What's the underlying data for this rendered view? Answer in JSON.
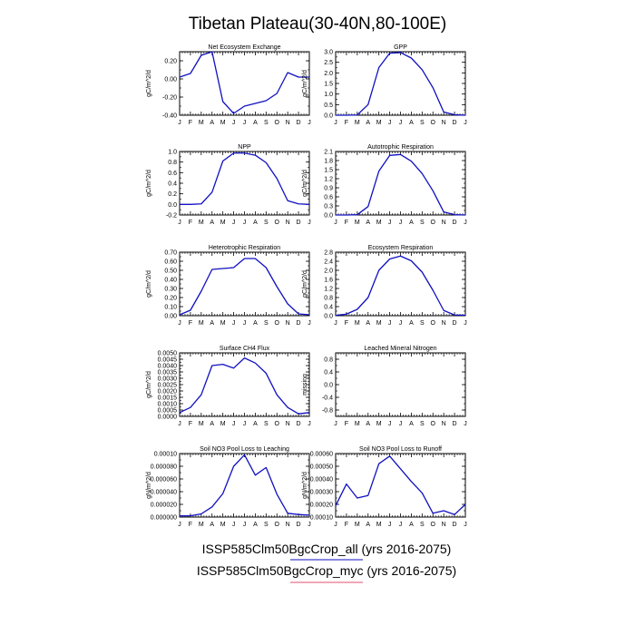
{
  "figure": {
    "title": "Tibetan Plateau(30-40N,80-100E)",
    "legend": [
      {
        "label": "ISSP585Clm50BgcCrop_all (yrs 2016-2075)",
        "color": "#1010c0"
      },
      {
        "label": "ISSP585Clm50BgcCrop_myc (yrs 2016-2075)",
        "color": "#e05070"
      }
    ]
  },
  "chart_data": [
    {
      "type": "line",
      "title": "Net Ecosystem Exchange",
      "ylabel": "gC/m^2/d",
      "categories": [
        "J",
        "F",
        "M",
        "A",
        "M",
        "J",
        "J",
        "A",
        "S",
        "O",
        "N",
        "D",
        "J"
      ],
      "ylim": [
        -0.4,
        0.3
      ],
      "yticks": [
        -0.4,
        -0.2,
        0.0,
        0.2
      ],
      "ytick_labels": [
        "-0.40",
        "-0.20",
        "0.00",
        "0.20"
      ],
      "series": [
        {
          "values": [
            0.02,
            0.06,
            0.26,
            0.3,
            -0.25,
            -0.38,
            -0.3,
            -0.27,
            -0.24,
            -0.16,
            0.07,
            0.02,
            0.02
          ]
        }
      ]
    },
    {
      "type": "line",
      "title": "GPP",
      "ylabel": "gC/m^2/d",
      "categories": [
        "J",
        "F",
        "M",
        "A",
        "M",
        "J",
        "J",
        "A",
        "S",
        "O",
        "N",
        "D",
        "J"
      ],
      "ylim": [
        0.0,
        3.0
      ],
      "yticks": [
        0.0,
        0.5,
        1.0,
        1.5,
        2.0,
        2.5,
        3.0
      ],
      "ytick_labels": [
        "0.0",
        "0.5",
        "1.0",
        "1.5",
        "2.0",
        "2.5",
        "3.0"
      ],
      "series": [
        {
          "values": [
            0.0,
            0.0,
            0.01,
            0.5,
            2.25,
            2.93,
            2.96,
            2.7,
            2.15,
            1.3,
            0.15,
            0.02,
            0.0
          ]
        }
      ]
    },
    {
      "type": "line",
      "title": "NPP",
      "ylabel": "gC/m^2/d",
      "categories": [
        "J",
        "F",
        "M",
        "A",
        "M",
        "J",
        "J",
        "A",
        "S",
        "O",
        "N",
        "D",
        "J"
      ],
      "ylim": [
        -0.2,
        1.0
      ],
      "yticks": [
        -0.2,
        0.0,
        0.2,
        0.4,
        0.6,
        0.8,
        1.0
      ],
      "ytick_labels": [
        "-0.2",
        "0.0",
        "0.2",
        "0.4",
        "0.6",
        "0.8",
        "1.0"
      ],
      "series": [
        {
          "values": [
            0.0,
            0.0,
            0.01,
            0.23,
            0.82,
            0.97,
            0.97,
            0.93,
            0.79,
            0.49,
            0.07,
            0.01,
            0.0
          ]
        }
      ]
    },
    {
      "type": "line",
      "title": "Autotrophic Respiration",
      "ylabel": "gC/m^2/d",
      "categories": [
        "J",
        "F",
        "M",
        "A",
        "M",
        "J",
        "J",
        "A",
        "S",
        "O",
        "N",
        "D",
        "J"
      ],
      "ylim": [
        0.0,
        2.1
      ],
      "yticks": [
        0.0,
        0.3,
        0.6,
        0.9,
        1.2,
        1.5,
        1.8,
        2.1
      ],
      "ytick_labels": [
        "0.0",
        "0.3",
        "0.6",
        "0.9",
        "1.2",
        "1.5",
        "1.8",
        "2.1"
      ],
      "series": [
        {
          "values": [
            0.0,
            0.0,
            0.01,
            0.28,
            1.45,
            1.97,
            2.0,
            1.78,
            1.37,
            0.8,
            0.1,
            0.01,
            0.0
          ]
        }
      ]
    },
    {
      "type": "line",
      "title": "Heterotrophic Respiration",
      "ylabel": "gC/m^2/d",
      "categories": [
        "J",
        "F",
        "M",
        "A",
        "M",
        "J",
        "J",
        "A",
        "S",
        "O",
        "N",
        "D",
        "J"
      ],
      "ylim": [
        0.0,
        0.7
      ],
      "yticks": [
        0.0,
        0.1,
        0.2,
        0.3,
        0.4,
        0.5,
        0.6,
        0.7
      ],
      "ytick_labels": [
        "0.00",
        "0.10",
        "0.20",
        "0.30",
        "0.40",
        "0.50",
        "0.60",
        "0.70"
      ],
      "series": [
        {
          "values": [
            0.01,
            0.06,
            0.27,
            0.51,
            0.52,
            0.53,
            0.63,
            0.63,
            0.53,
            0.32,
            0.13,
            0.02,
            0.01
          ]
        }
      ]
    },
    {
      "type": "line",
      "title": "Ecosystem Respiration",
      "ylabel": "gC/m^2/d",
      "categories": [
        "J",
        "F",
        "M",
        "A",
        "M",
        "J",
        "J",
        "A",
        "S",
        "O",
        "N",
        "D",
        "J"
      ],
      "ylim": [
        0.0,
        2.8
      ],
      "yticks": [
        0.0,
        0.4,
        0.8,
        1.2,
        1.6,
        2.0,
        2.4,
        2.8
      ],
      "ytick_labels": [
        "0.0",
        "0.4",
        "0.8",
        "1.2",
        "1.6",
        "2.0",
        "2.4",
        "2.8"
      ],
      "series": [
        {
          "values": [
            0.01,
            0.07,
            0.28,
            0.8,
            2.0,
            2.5,
            2.63,
            2.42,
            1.92,
            1.12,
            0.23,
            0.03,
            0.02
          ]
        }
      ]
    },
    {
      "type": "line",
      "title": "Surface CH4 Flux",
      "ylabel": "gC/m^2/d",
      "categories": [
        "J",
        "F",
        "M",
        "A",
        "M",
        "J",
        "J",
        "A",
        "S",
        "O",
        "N",
        "D",
        "J"
      ],
      "ylim": [
        0.0,
        0.005
      ],
      "yticks": [
        0.0,
        0.0005,
        0.001,
        0.0015,
        0.002,
        0.0025,
        0.003,
        0.0035,
        0.004,
        0.0045,
        0.005
      ],
      "ytick_labels": [
        "0.0000",
        "0.0005",
        "0.0010",
        "0.0015",
        "0.0020",
        "0.0025",
        "0.0030",
        "0.0035",
        "0.0040",
        "0.0045",
        "0.0050"
      ],
      "series": [
        {
          "values": [
            0.0003,
            0.0007,
            0.0017,
            0.004,
            0.0041,
            0.0038,
            0.0046,
            0.0042,
            0.0034,
            0.0017,
            0.0007,
            0.0002,
            0.0003
          ]
        }
      ]
    },
    {
      "type": "line",
      "title": "Leached Mineral Nitrogen",
      "ylabel": "missing",
      "categories": [
        "J",
        "F",
        "M",
        "A",
        "M",
        "J",
        "J",
        "A",
        "S",
        "O",
        "N",
        "D",
        "J"
      ],
      "ylim": [
        -1.0,
        1.0
      ],
      "yticks": [
        -0.8,
        -0.4,
        0.0,
        0.4,
        0.8
      ],
      "ytick_labels": [
        "-0.8",
        "-0.4",
        "0.0",
        "0.4",
        "0.8"
      ],
      "series": []
    },
    {
      "type": "line",
      "title": "Soil NO3 Pool Loss to Leaching",
      "ylabel": "gN/m^2/d",
      "categories": [
        "J",
        "F",
        "M",
        "A",
        "M",
        "J",
        "J",
        "A",
        "S",
        "O",
        "N",
        "D",
        "J"
      ],
      "ylim": [
        0.0,
        0.0001
      ],
      "yticks": [
        0.0,
        2e-05,
        4e-05,
        6e-05,
        8e-05,
        0.0001
      ],
      "ytick_labels": [
        "0.000000",
        "0.000020",
        "0.000040",
        "0.000060",
        "0.000080",
        "0.00010"
      ],
      "series": [
        {
          "values": [
            2e-06,
            2e-06,
            5e-06,
            1.6e-05,
            3.7e-05,
            8e-05,
            9.8e-05,
            6.6e-05,
            7.8e-05,
            3.6e-05,
            6e-06,
            4e-06,
            3e-06
          ]
        }
      ]
    },
    {
      "type": "line",
      "title": "Soil NO3 Pool Loss to Runoff",
      "ylabel": "gN/m^2/d",
      "categories": [
        "J",
        "F",
        "M",
        "A",
        "M",
        "J",
        "J",
        "A",
        "S",
        "O",
        "N",
        "D",
        "J"
      ],
      "ylim": [
        0.0001,
        0.0006
      ],
      "yticks": [
        0.0001,
        0.0002,
        0.0003,
        0.0004,
        0.0005,
        0.0006
      ],
      "ytick_labels": [
        "0.00010",
        "0.00020",
        "0.00030",
        "0.00040",
        "0.00050",
        "0.00060"
      ],
      "series": [
        {
          "values": [
            0.00019,
            0.00036,
            0.00025,
            0.00027,
            0.00052,
            0.00058,
            0.00048,
            0.00038,
            0.00029,
            0.00013,
            0.00015,
            0.00012,
            0.0002
          ]
        }
      ]
    }
  ]
}
